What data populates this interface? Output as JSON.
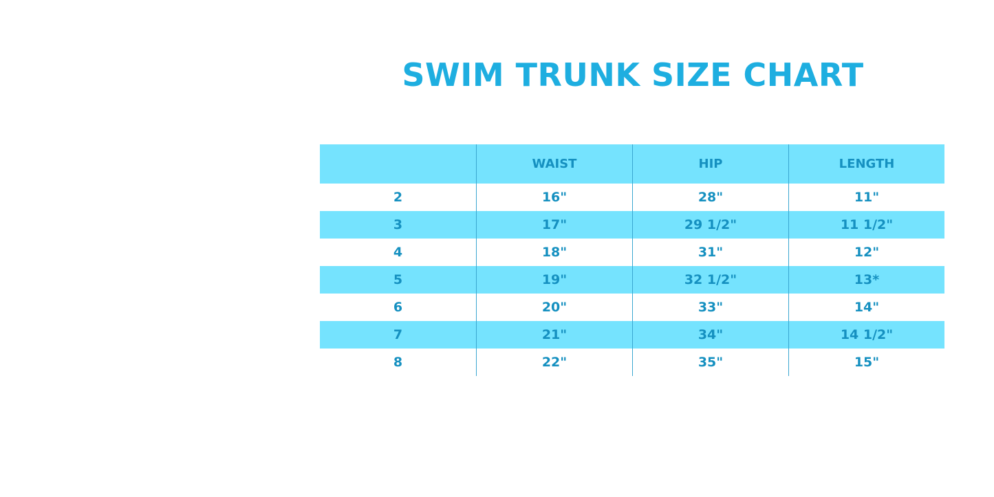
{
  "title": "SWIM TRUNK SIZE CHART",
  "colors": {
    "title": "#1eaee0",
    "stripe": "#75e3fe",
    "text": "#1590c0"
  },
  "table": {
    "headers": [
      "",
      "WAIST",
      "HIP",
      "LENGTH"
    ],
    "rows": [
      [
        "2",
        "16\"",
        "28\"",
        "11\""
      ],
      [
        "3",
        "17\"",
        "29 1/2\"",
        "11 1/2\""
      ],
      [
        "4",
        "18\"",
        "31\"",
        "12\""
      ],
      [
        "5",
        "19\"",
        "32 1/2\"",
        "13*"
      ],
      [
        "6",
        "20\"",
        "33\"",
        "14\""
      ],
      [
        "7",
        "21\"",
        "34\"",
        "14 1/2\""
      ],
      [
        "8",
        "22\"",
        "35\"",
        "15\""
      ]
    ]
  }
}
